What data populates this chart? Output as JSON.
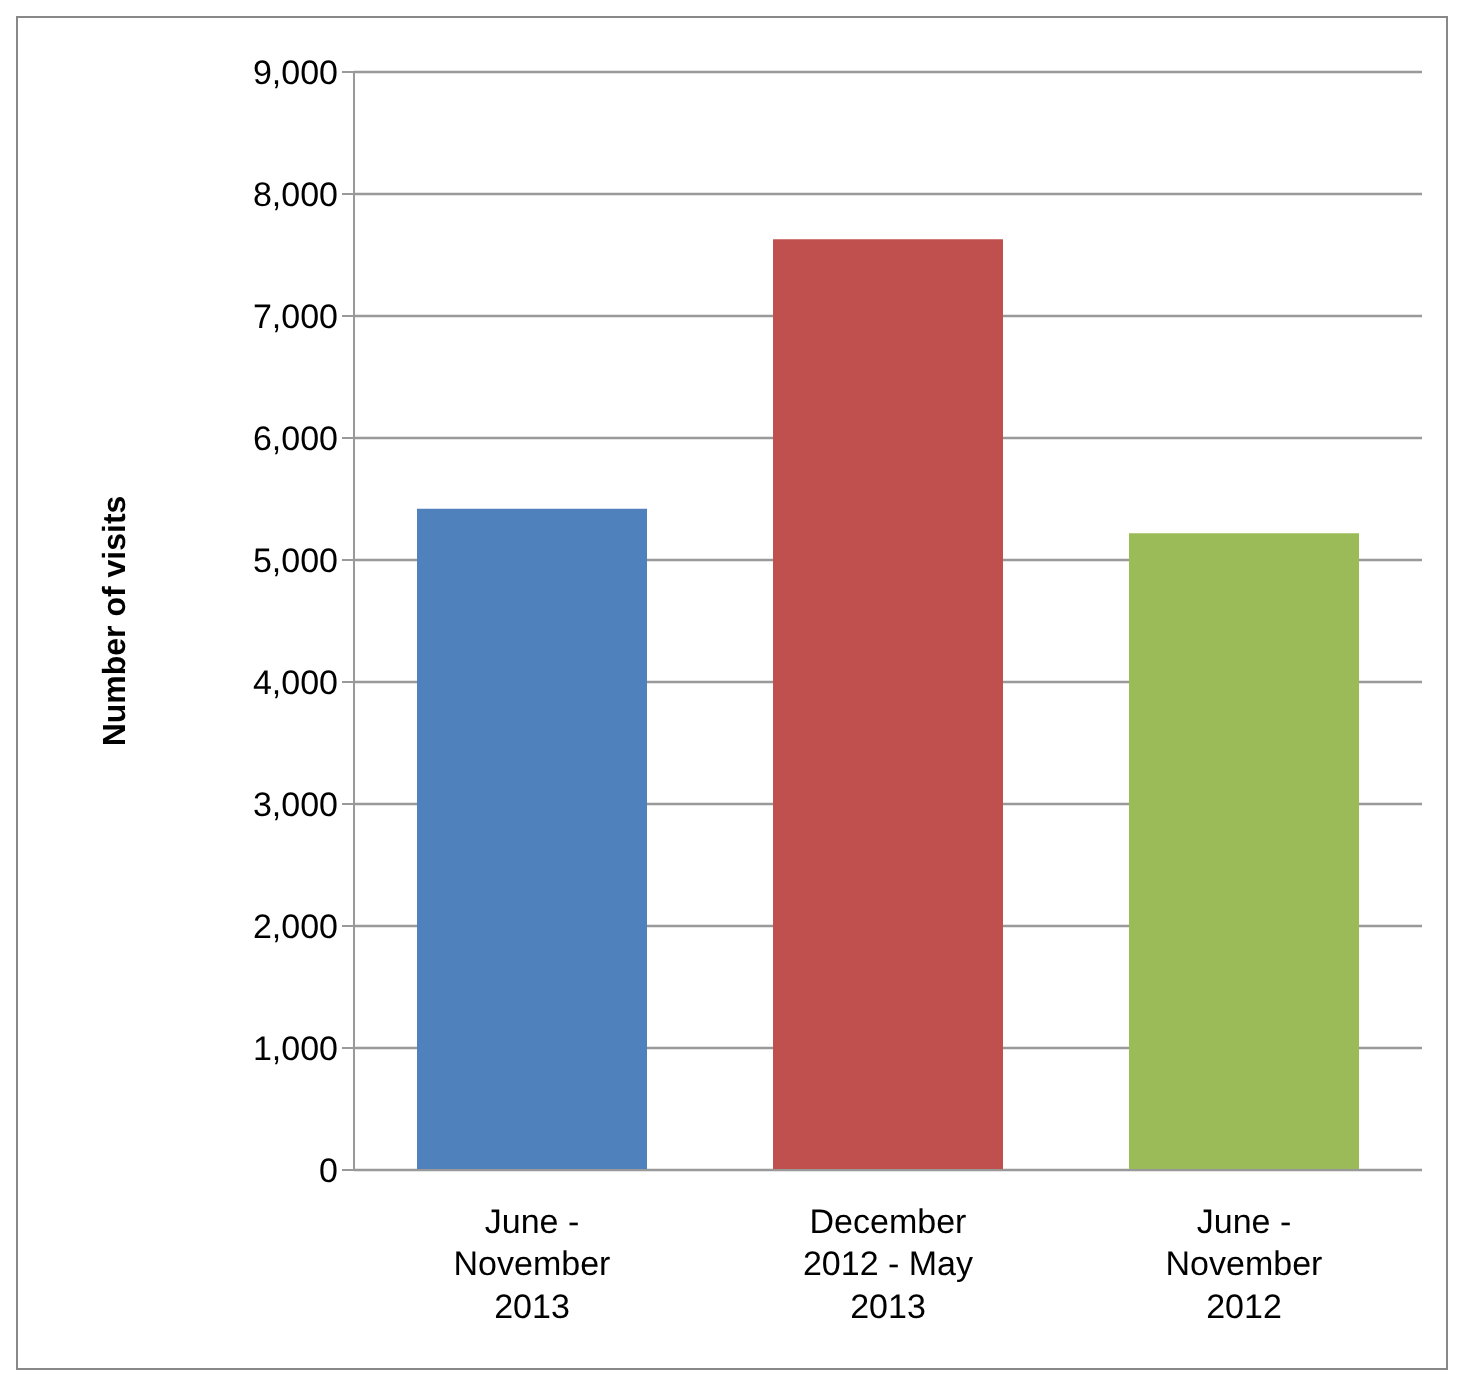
{
  "chart_data": {
    "type": "bar",
    "ylabel": "Number of visits",
    "categories": [
      "June - November 2013",
      "December 2012 - May 2013",
      "June - November 2012"
    ],
    "values": [
      5420,
      7630,
      5220
    ],
    "colors": [
      "#4f81bd",
      "#c0504d",
      "#9bbb59"
    ],
    "ylim": [
      0,
      9000
    ],
    "yticks": [
      {
        "value": 0,
        "label": "0"
      },
      {
        "value": 1000,
        "label": "1,000"
      },
      {
        "value": 2000,
        "label": "2,000"
      },
      {
        "value": 3000,
        "label": "3,000"
      },
      {
        "value": 4000,
        "label": "4,000"
      },
      {
        "value": 5000,
        "label": "5,000"
      },
      {
        "value": 6000,
        "label": "6,000"
      },
      {
        "value": 7000,
        "label": "7,000"
      },
      {
        "value": 8000,
        "label": "8,000"
      },
      {
        "value": 9000,
        "label": "9,000"
      }
    ],
    "grid": "y"
  }
}
